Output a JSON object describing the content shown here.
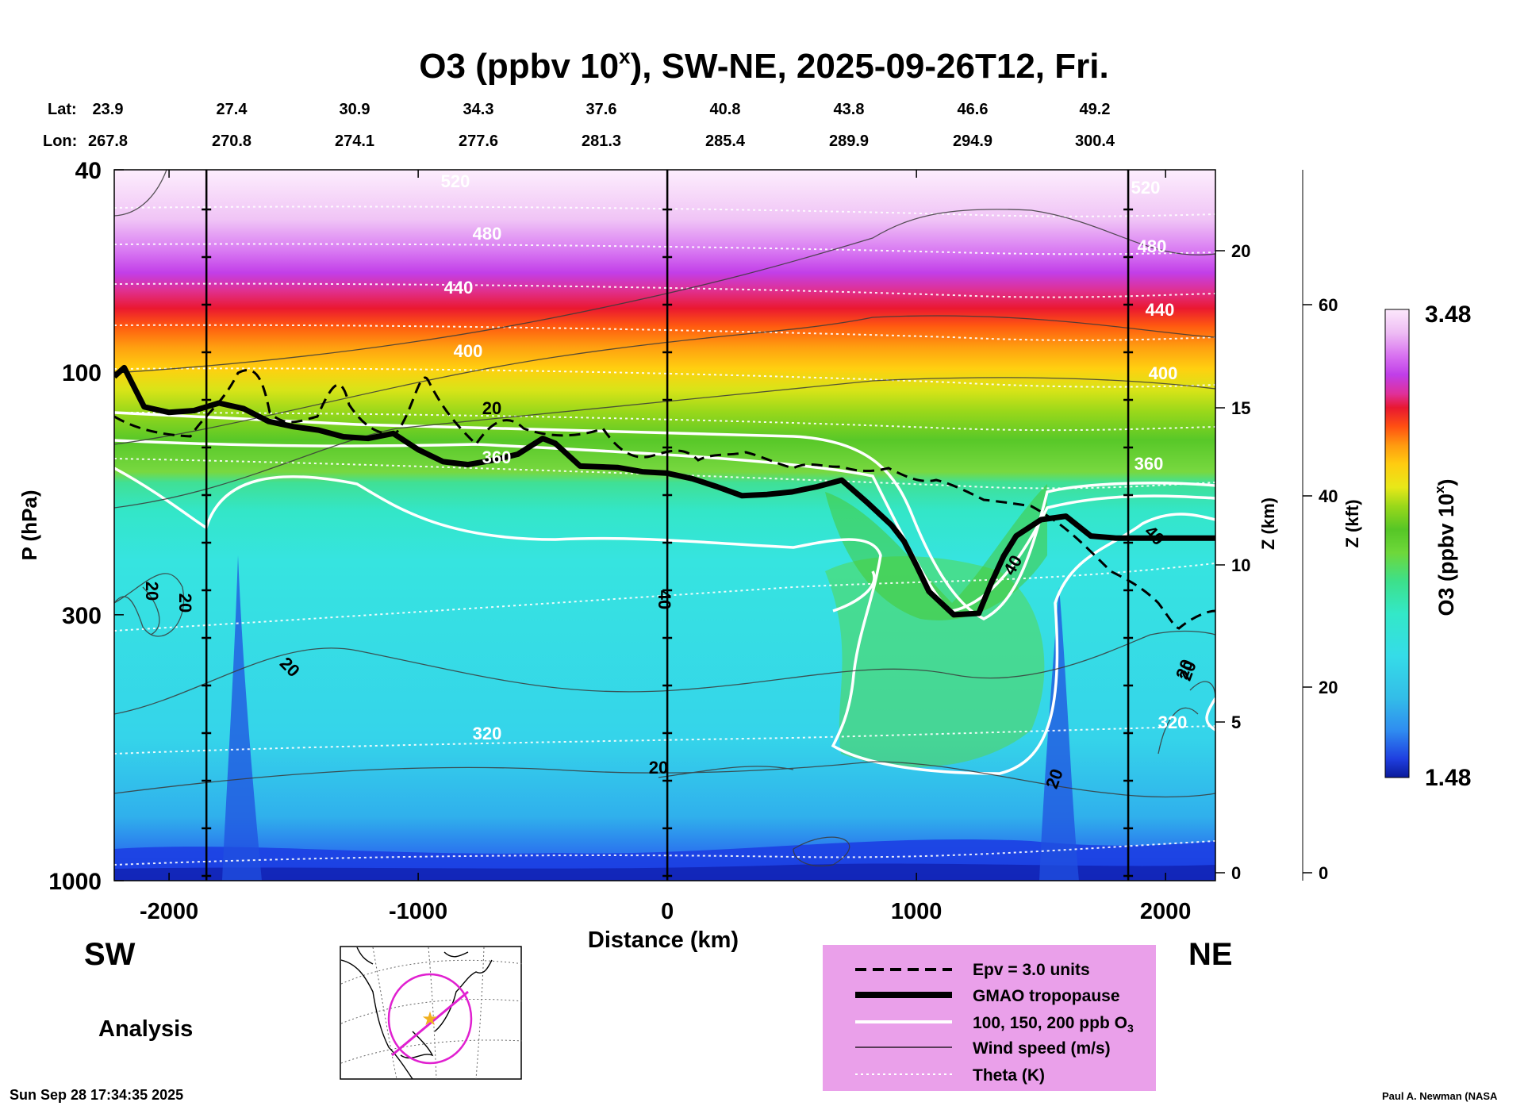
{
  "chart_data": {
    "type": "heatmap",
    "title": "O3 (ppbv 10",
    "title_sup": "x",
    "title_rest": "), SW-NE, 2025-09-26T12, Fri.",
    "xlabel": "Distance (km)",
    "ylabel": "P (hPa)",
    "xlim": [
      -2220,
      2200
    ],
    "x_ticks": [
      -2000,
      -1000,
      0,
      1000,
      2000
    ],
    "x_tick_labels": [
      "-2000",
      "-1000",
      "0",
      "1000",
      "2000"
    ],
    "y_axis": {
      "scale": "log",
      "range_hPa": [
        1000,
        40
      ],
      "ticks": [
        40,
        100,
        300,
        1000
      ],
      "tick_labels": [
        "40",
        "100",
        "300",
        "1000"
      ]
    },
    "z_km_axis": {
      "label": "Z (km)",
      "ticks": [
        0,
        5,
        10,
        15,
        20
      ],
      "tick_labels": [
        "0",
        "5",
        "10",
        "15",
        "20"
      ]
    },
    "z_kft_axis": {
      "label": "Z (kft)",
      "ticks": [
        0,
        20,
        40,
        60
      ],
      "tick_labels": [
        "0",
        "20",
        "40",
        "60"
      ]
    },
    "lat_label": "Lat:",
    "lon_label": "Lon:",
    "lat_values": [
      "23.9",
      "27.4",
      "30.9",
      "34.3",
      "37.6",
      "40.8",
      "43.8",
      "46.6",
      "49.2"
    ],
    "lon_values": [
      "267.8",
      "270.8",
      "274.1",
      "277.6",
      "281.3",
      "285.4",
      "289.9",
      "294.9",
      "300.4"
    ],
    "vertical_lines_km": [
      -1850,
      0,
      1850
    ],
    "colorbar": {
      "label": "O3 (ppbv 10",
      "label_sup": "x",
      "label_end": ")",
      "max_label": "3.48",
      "min_label": "1.48",
      "min": 1.48,
      "max": 3.48
    },
    "theta_labels": [
      "520",
      "480",
      "440",
      "400",
      "360",
      "320",
      "520",
      "480",
      "440",
      "400",
      "360",
      "320"
    ],
    "wind_labels": [
      "20",
      "20",
      "20",
      "20",
      "20",
      "40",
      "40",
      "40",
      "20",
      "20",
      "20"
    ],
    "tropopause_hPa": [
      [
        -2220,
        102
      ],
      [
        -2180,
        98
      ],
      [
        -2100,
        117
      ],
      [
        -2000,
        120
      ],
      [
        -1900,
        119
      ],
      [
        -1800,
        115
      ],
      [
        -1700,
        118
      ],
      [
        -1600,
        125
      ],
      [
        -1500,
        128
      ],
      [
        -1400,
        130
      ],
      [
        -1300,
        134
      ],
      [
        -1200,
        135
      ],
      [
        -1100,
        132
      ],
      [
        -1000,
        142
      ],
      [
        -900,
        150
      ],
      [
        -800,
        152
      ],
      [
        -700,
        149
      ],
      [
        -600,
        145
      ],
      [
        -500,
        135
      ],
      [
        -450,
        138
      ],
      [
        -350,
        153
      ],
      [
        -200,
        154
      ],
      [
        -100,
        157
      ],
      [
        0,
        158
      ],
      [
        100,
        162
      ],
      [
        200,
        168
      ],
      [
        300,
        175
      ],
      [
        400,
        174
      ],
      [
        500,
        172
      ],
      [
        600,
        168
      ],
      [
        700,
        163
      ],
      [
        800,
        180
      ],
      [
        900,
        200
      ],
      [
        950,
        215
      ],
      [
        1000,
        240
      ],
      [
        1050,
        270
      ],
      [
        1150,
        300
      ],
      [
        1250,
        298
      ],
      [
        1300,
        260
      ],
      [
        1350,
        230
      ],
      [
        1400,
        210
      ],
      [
        1500,
        195
      ],
      [
        1600,
        192
      ],
      [
        1700,
        210
      ],
      [
        1800,
        212
      ],
      [
        2000,
        212
      ],
      [
        2200,
        212
      ]
    ],
    "legend": {
      "items": [
        "Epv = 3.0 units",
        "GMAO tropopause",
        "100, 150, 200 ppb O",
        "Wind speed (m/s)",
        "Theta (K)"
      ],
      "o3_sub": "3"
    }
  },
  "labels": {
    "sw": "SW",
    "ne": "NE",
    "analysis": "Analysis",
    "timestamp": "Sun Sep 28 17:34:35 2025",
    "credit": "Paul A. Newman (NASA"
  },
  "colors": {
    "legend_bg": "#eaa0ea",
    "orbit": "#e020d0",
    "star": "#f0b020"
  }
}
